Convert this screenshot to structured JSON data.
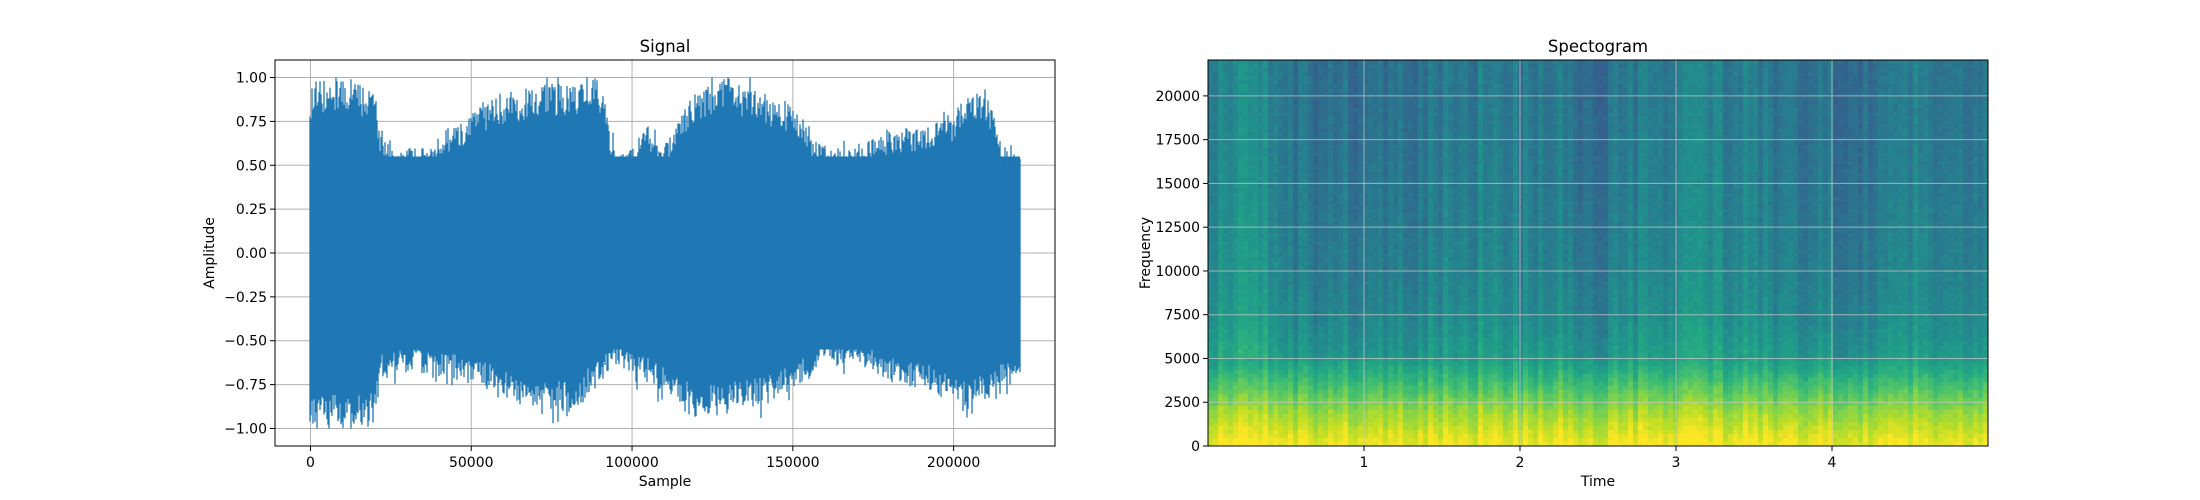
{
  "chart_data": [
    {
      "type": "area",
      "title": "Signal",
      "xlabel": "Sample",
      "ylabel": "Amplitude",
      "xlim": [
        -11025,
        231525
      ],
      "ylim": [
        -1.1,
        1.1
      ],
      "x_ticks": [
        0,
        50000,
        100000,
        150000,
        200000
      ],
      "x_tick_labels": [
        "0",
        "50000",
        "100000",
        "150000",
        "200000"
      ],
      "y_ticks": [
        -1.0,
        -0.75,
        -0.5,
        -0.25,
        0.0,
        0.25,
        0.5,
        0.75,
        1.0
      ],
      "y_tick_labels": [
        "−1.00",
        "−0.75",
        "−0.50",
        "−0.25",
        "0.00",
        "0.25",
        "0.50",
        "0.75",
        "1.00"
      ],
      "grid": true,
      "color": "#1f77b4",
      "series": [
        {
          "x": [
            0,
            5000,
            10000,
            15000,
            20000,
            22000,
            30000,
            40000,
            50000,
            60000,
            70000,
            80000,
            90000,
            95000,
            100000,
            105000,
            110000,
            120000,
            130000,
            140000,
            150000,
            155000,
            160000,
            170000,
            180000,
            190000,
            200000,
            205000,
            210000,
            215000,
            220500
          ],
          "upper": [
            0.95,
            1.0,
            1.0,
            0.98,
            0.95,
            0.65,
            0.6,
            0.6,
            0.82,
            0.92,
            0.95,
            0.98,
            1.0,
            0.55,
            0.62,
            0.72,
            0.6,
            0.95,
            1.0,
            0.92,
            0.85,
            0.7,
            0.6,
            0.6,
            0.7,
            0.72,
            0.8,
            0.9,
            0.95,
            0.6,
            0.55
          ],
          "lower": [
            -0.97,
            -1.0,
            -1.0,
            -1.0,
            -1.0,
            -0.72,
            -0.68,
            -0.7,
            -0.75,
            -0.82,
            -0.88,
            -0.92,
            -0.75,
            -0.65,
            -0.7,
            -0.75,
            -0.82,
            -0.95,
            -0.92,
            -0.88,
            -0.78,
            -0.72,
            -0.6,
            -0.65,
            -0.72,
            -0.78,
            -0.85,
            -0.92,
            -0.85,
            -0.78,
            -0.72
          ]
        }
      ]
    },
    {
      "type": "heatmap",
      "title": "Spectogram",
      "xlabel": "Time",
      "ylabel": "Frequency",
      "xlim": [
        0,
        5.0
      ],
      "ylim": [
        0,
        22050
      ],
      "x_ticks": [
        1,
        2,
        3,
        4
      ],
      "x_tick_labels": [
        "1",
        "2",
        "3",
        "4"
      ],
      "y_ticks": [
        0,
        2500,
        5000,
        7500,
        10000,
        12500,
        15000,
        17500,
        20000
      ],
      "y_tick_labels": [
        "0",
        "2500",
        "5000",
        "7500",
        "10000",
        "12500",
        "15000",
        "17500",
        "20000"
      ],
      "grid": true,
      "colormap": "viridis",
      "value_range": [
        0,
        1
      ],
      "time_bins": [
        0.1,
        0.3,
        0.5,
        0.9,
        1.3,
        1.7,
        2.1,
        2.5,
        2.9,
        3.3,
        3.7,
        4.1,
        4.5,
        4.9
      ],
      "time_activity": [
        0.55,
        0.65,
        0.35,
        0.3,
        0.32,
        0.45,
        0.4,
        0.3,
        0.42,
        0.5,
        0.35,
        0.3,
        0.45,
        0.4
      ],
      "freq_bins": [
        250,
        1000,
        2000,
        3000,
        4000,
        5000,
        7500,
        10000,
        15000,
        20000
      ],
      "freq_profile": [
        0.98,
        0.92,
        0.85,
        0.75,
        0.65,
        0.55,
        0.48,
        0.45,
        0.42,
        0.4
      ]
    }
  ]
}
